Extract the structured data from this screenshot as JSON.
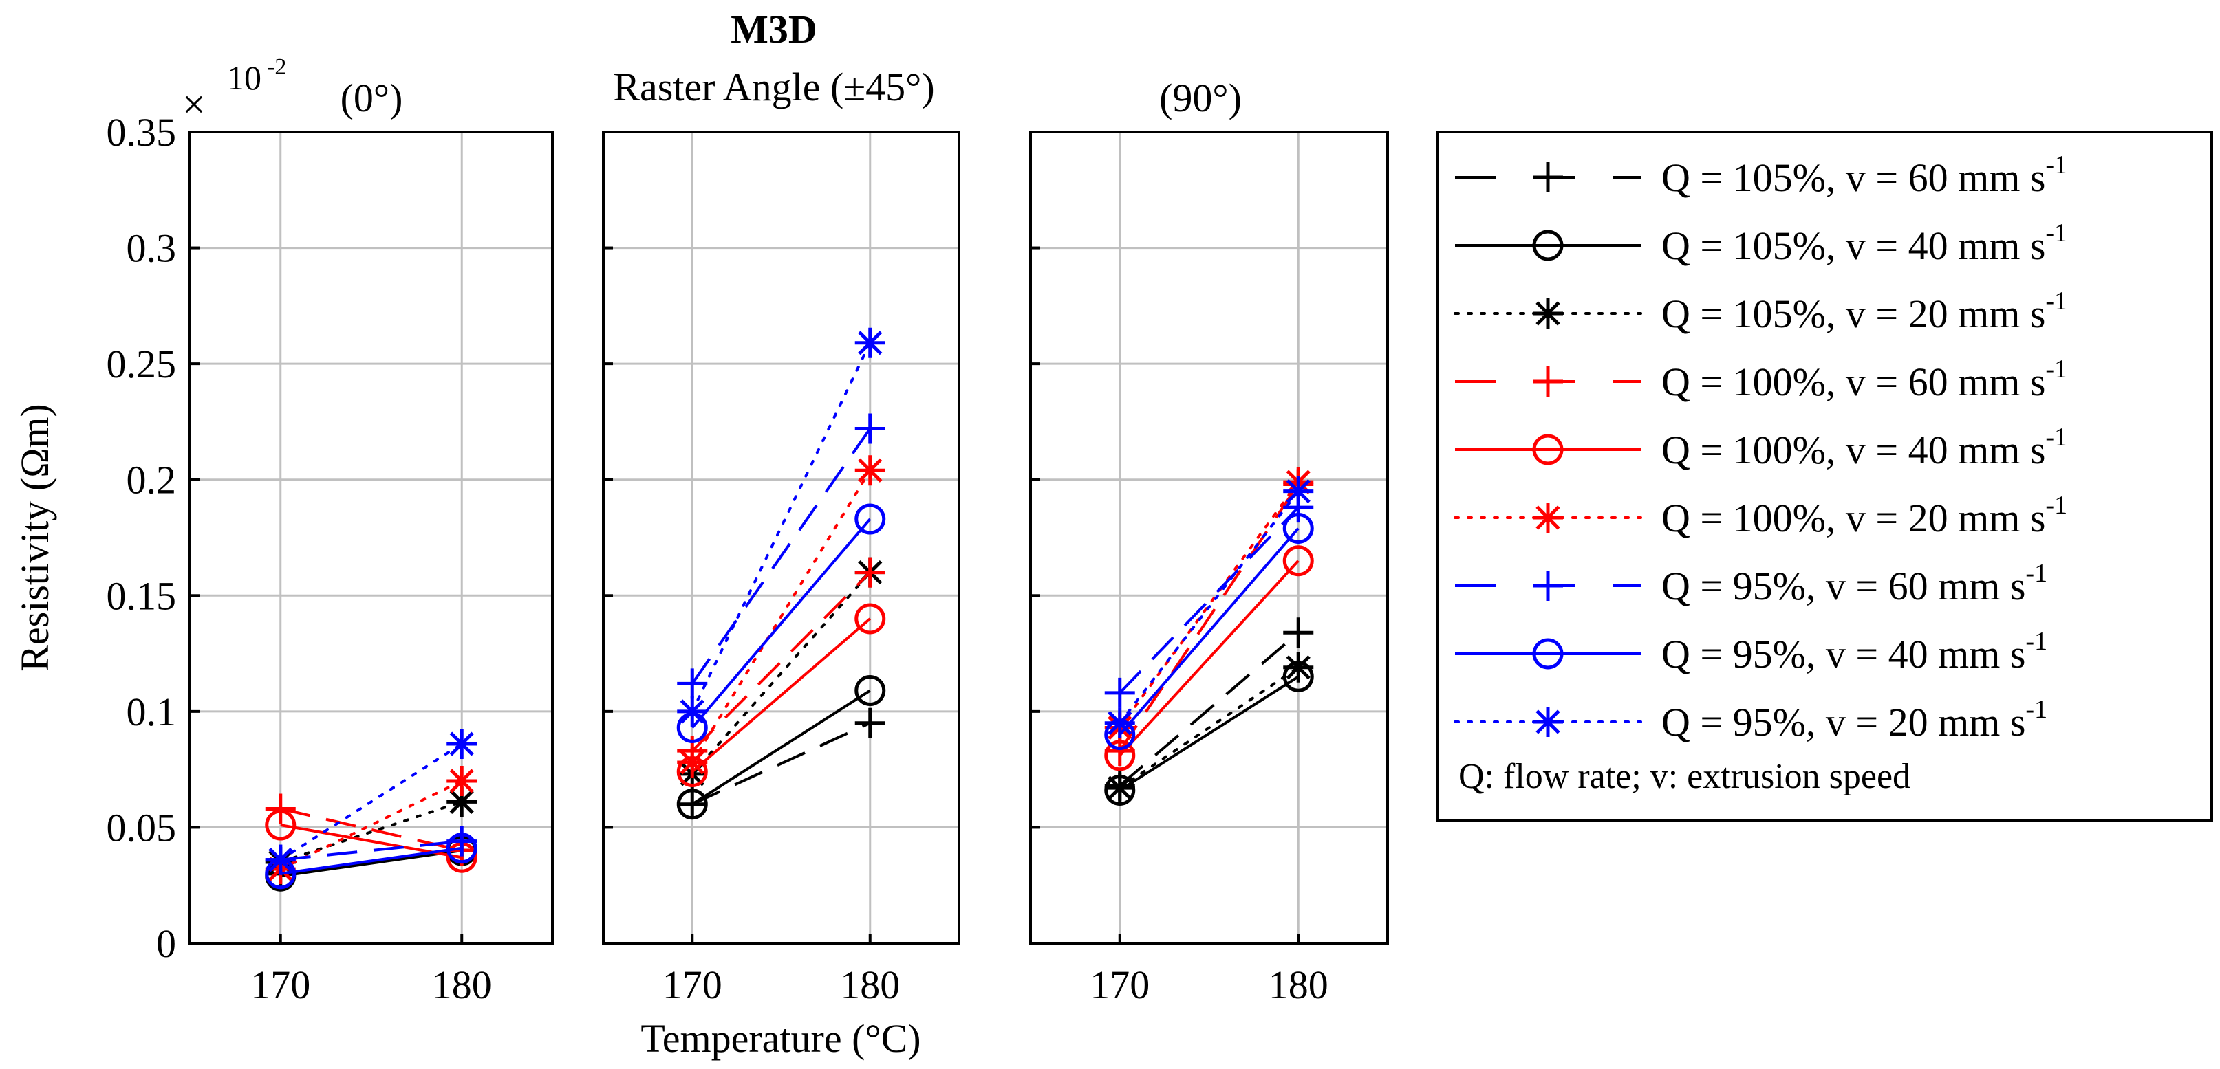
{
  "figure_title": "M3D",
  "figure_subtitle": "Raster Angle (±45°)",
  "exponent": {
    "times": "×",
    "base": "10",
    "power": "-2"
  },
  "legend_note": "Q: flow rate; v: extrusion speed",
  "colors": {
    "black": "#000000",
    "red": "#ff0000",
    "blue": "#0000ff",
    "grid": "#c0c0c0"
  },
  "chart_data": {
    "type": "line",
    "ylabel": "Resistivity (Ωm)",
    "xlabel": "Temperature (°C)",
    "ylim": [
      0,
      0.35
    ],
    "yticks": [
      0,
      0.05,
      0.1,
      0.15,
      0.2,
      0.25,
      0.3,
      0.35
    ],
    "ytick_labels": [
      "0",
      "0.05",
      "0.1",
      "0.15",
      "0.2",
      "0.25",
      "0.3",
      "0.35"
    ],
    "xlim": [
      165,
      185
    ],
    "x": [
      170,
      180
    ],
    "xtick_labels": [
      "170",
      "180"
    ],
    "y_scale_note": "values × 10^-2",
    "panels": [
      {
        "title": "(0°)",
        "series": [
          {
            "values": [
              0.03,
              0.04
            ]
          },
          {
            "values": [
              0.029,
              0.04
            ]
          },
          {
            "values": [
              0.035,
              0.061
            ]
          },
          {
            "values": [
              0.058,
              0.04
            ]
          },
          {
            "values": [
              0.051,
              0.037
            ]
          },
          {
            "values": [
              0.032,
              0.07
            ]
          },
          {
            "values": [
              0.036,
              0.044
            ]
          },
          {
            "values": [
              0.03,
              0.041
            ]
          },
          {
            "values": [
              0.036,
              0.086
            ]
          }
        ]
      },
      {
        "title": "",
        "series": [
          {
            "values": [
              0.06,
              0.095
            ]
          },
          {
            "values": [
              0.06,
              0.109
            ]
          },
          {
            "values": [
              0.073,
              0.16
            ]
          },
          {
            "values": [
              0.083,
              0.16
            ]
          },
          {
            "values": [
              0.074,
              0.14
            ]
          },
          {
            "values": [
              0.078,
              0.204
            ]
          },
          {
            "values": [
              0.112,
              0.222
            ]
          },
          {
            "values": [
              0.093,
              0.183
            ]
          },
          {
            "values": [
              0.1,
              0.259
            ]
          }
        ]
      },
      {
        "title": "(90°)",
        "series": [
          {
            "values": [
              0.068,
              0.134
            ]
          },
          {
            "values": [
              0.066,
              0.115
            ]
          },
          {
            "values": [
              0.067,
              0.119
            ]
          },
          {
            "values": [
              0.083,
              0.198
            ]
          },
          {
            "values": [
              0.081,
              0.165
            ]
          },
          {
            "values": [
              0.093,
              0.199
            ]
          },
          {
            "values": [
              0.108,
              0.188
            ]
          },
          {
            "values": [
              0.09,
              0.179
            ]
          },
          {
            "values": [
              0.095,
              0.195
            ]
          }
        ]
      }
    ],
    "series_styles": [
      {
        "name": "Q = 105%, v = 60 mm s",
        "sup": "-1",
        "color": "#000000",
        "dash": "dashed",
        "marker": "plus"
      },
      {
        "name": "Q = 105%, v = 40 mm s",
        "sup": "-1",
        "color": "#000000",
        "dash": "solid",
        "marker": "circle"
      },
      {
        "name": "Q = 105%, v = 20 mm s",
        "sup": "-1",
        "color": "#000000",
        "dash": "dotted",
        "marker": "asterisk"
      },
      {
        "name": "Q = 100%, v = 60 mm s",
        "sup": "-1",
        "color": "#ff0000",
        "dash": "dashed",
        "marker": "plus"
      },
      {
        "name": "Q = 100%, v = 40 mm s",
        "sup": "-1",
        "color": "#ff0000",
        "dash": "solid",
        "marker": "circle"
      },
      {
        "name": "Q = 100%, v = 20 mm s",
        "sup": "-1",
        "color": "#ff0000",
        "dash": "dotted",
        "marker": "asterisk"
      },
      {
        "name": "Q = 95%, v = 60 mm s",
        "sup": "-1",
        "color": "#0000ff",
        "dash": "dashed",
        "marker": "plus"
      },
      {
        "name": "Q = 95%, v = 40 mm s",
        "sup": "-1",
        "color": "#0000ff",
        "dash": "solid",
        "marker": "circle"
      },
      {
        "name": "Q = 95%, v = 20 mm s",
        "sup": "-1",
        "color": "#0000ff",
        "dash": "dotted",
        "marker": "asterisk"
      }
    ]
  }
}
